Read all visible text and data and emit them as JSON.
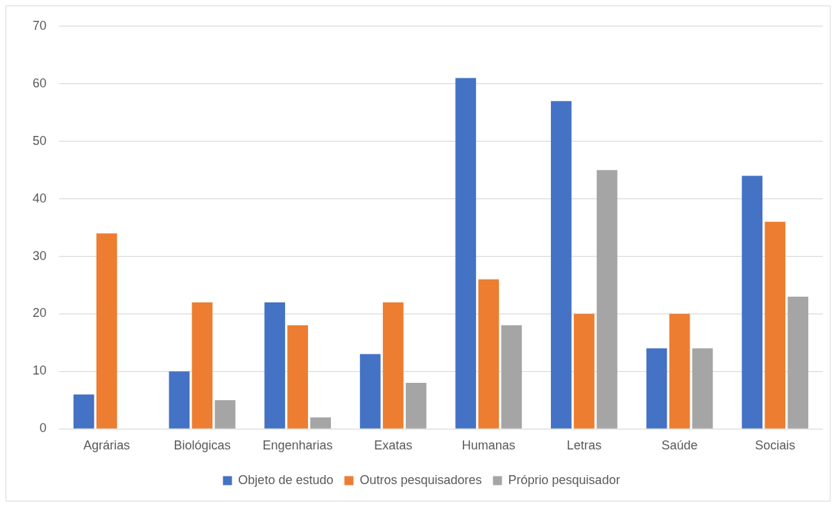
{
  "chart_data": {
    "type": "bar",
    "categories": [
      "Agrárias",
      "Biológicas",
      "Engenharias",
      "Exatas",
      "Humanas",
      "Letras",
      "Saúde",
      "Sociais"
    ],
    "series": [
      {
        "name": "Objeto de estudo",
        "color": "#4472c4",
        "values": [
          6,
          10,
          22,
          13,
          61,
          57,
          14,
          44
        ]
      },
      {
        "name": "Outros pesquisadores",
        "color": "#ed7d31",
        "values": [
          34,
          22,
          18,
          22,
          26,
          20,
          20,
          36
        ]
      },
      {
        "name": "Próprio pesquisador",
        "color": "#a5a5a5",
        "values": [
          0,
          5,
          2,
          8,
          18,
          45,
          14,
          23
        ]
      }
    ],
    "ylim": [
      0,
      70
    ],
    "yticks": [
      0,
      10,
      20,
      30,
      40,
      50,
      60,
      70
    ],
    "grid": "y",
    "legend": "bottom"
  }
}
